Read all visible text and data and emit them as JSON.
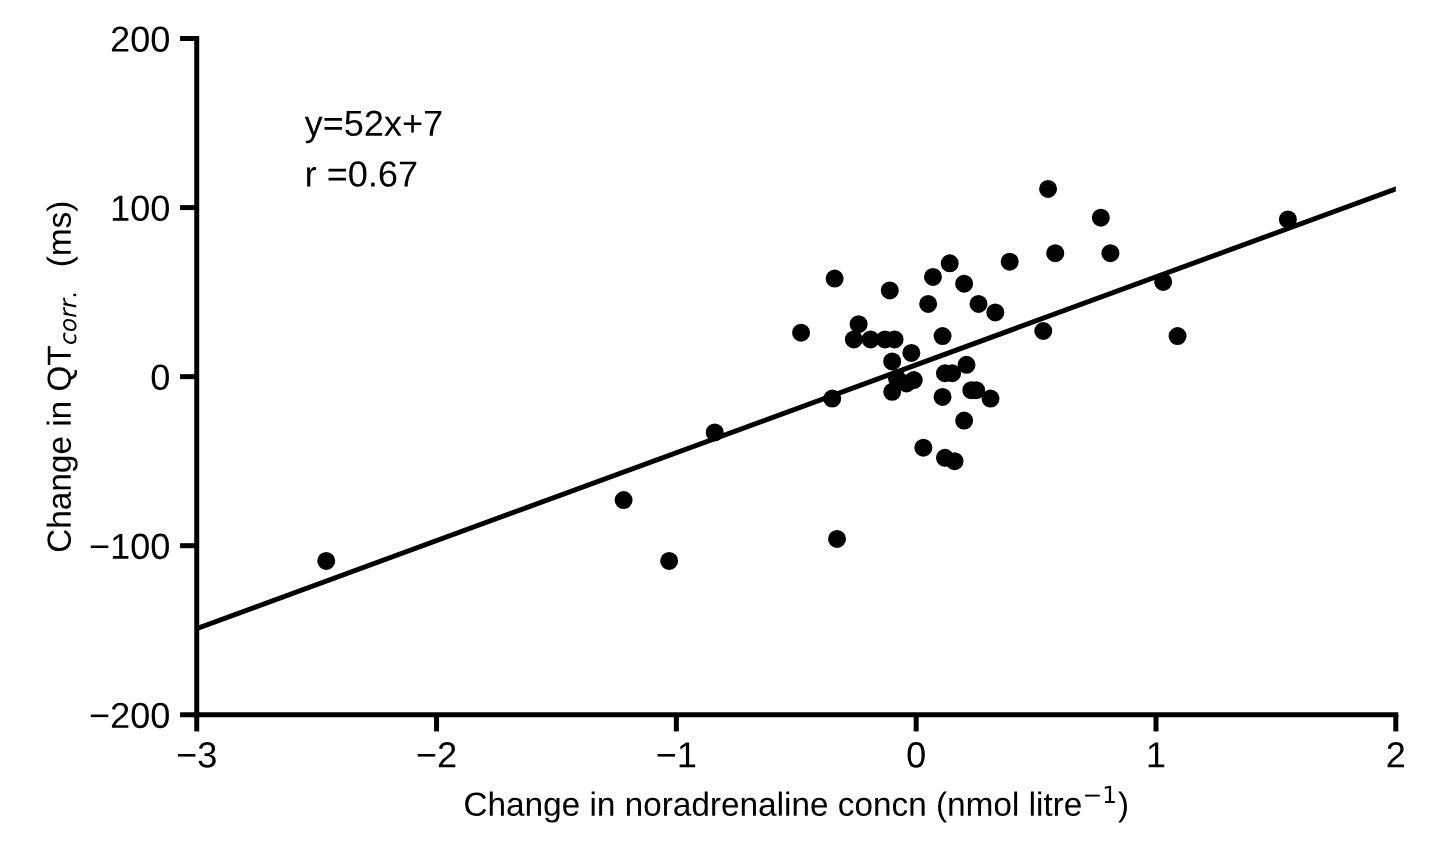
{
  "chart_data": {
    "type": "scatter",
    "xlabel": "Change in noradrenaline concn (nmol litre$^{−1}$)",
    "ylabel": "Change in QT$_{corr.}$  (ms)",
    "xlim": [
      -3,
      2
    ],
    "ylim": [
      -200,
      200
    ],
    "xticks": [
      -3,
      -2,
      -1,
      0,
      1,
      2
    ],
    "yticks": [
      -200,
      -100,
      0,
      100,
      200
    ],
    "grid": false,
    "marker": "circle",
    "annotations": [
      "y=52x+7",
      "r =0.67"
    ],
    "series": [
      {
        "color": "#000000",
        "x": [
          -2.46,
          0.55,
          0.77,
          0.58,
          0.81,
          0.39,
          0.14,
          -0.34,
          0.07,
          0.2,
          -0.11,
          0.05,
          0.26,
          0.33,
          -0.24,
          -0.48,
          0.11,
          0.53,
          -0.26,
          -0.19,
          -0.13,
          -0.09,
          1.03,
          1.09,
          1.55,
          -0.02,
          -0.1,
          0.21,
          0.12,
          0.15,
          -0.08,
          -0.01,
          -0.04,
          0.23,
          0.25,
          0.31,
          -0.1,
          0.11,
          -0.35,
          0.2,
          0.03,
          0.12,
          0.16,
          -0.84,
          -1.22,
          -1.03,
          -0.33
        ],
        "values": [
          -109,
          111,
          94,
          73,
          73,
          68,
          67,
          58,
          59,
          55,
          51,
          43,
          43,
          38,
          31,
          26,
          24,
          27,
          22,
          22,
          22,
          22,
          56,
          24,
          93,
          14,
          9,
          7,
          2,
          2,
          -1,
          -2,
          -4,
          -8,
          -8,
          -13,
          -9,
          -12,
          -13,
          -26,
          -42,
          -48,
          -50,
          -33,
          -73,
          -109,
          -96
        ]
      },
      {
        "type": "line",
        "color": "#000000",
        "line_style": "solid",
        "marker": "none",
        "x": [
          -3,
          2
        ],
        "values": [
          -149,
          111
        ]
      }
    ]
  }
}
